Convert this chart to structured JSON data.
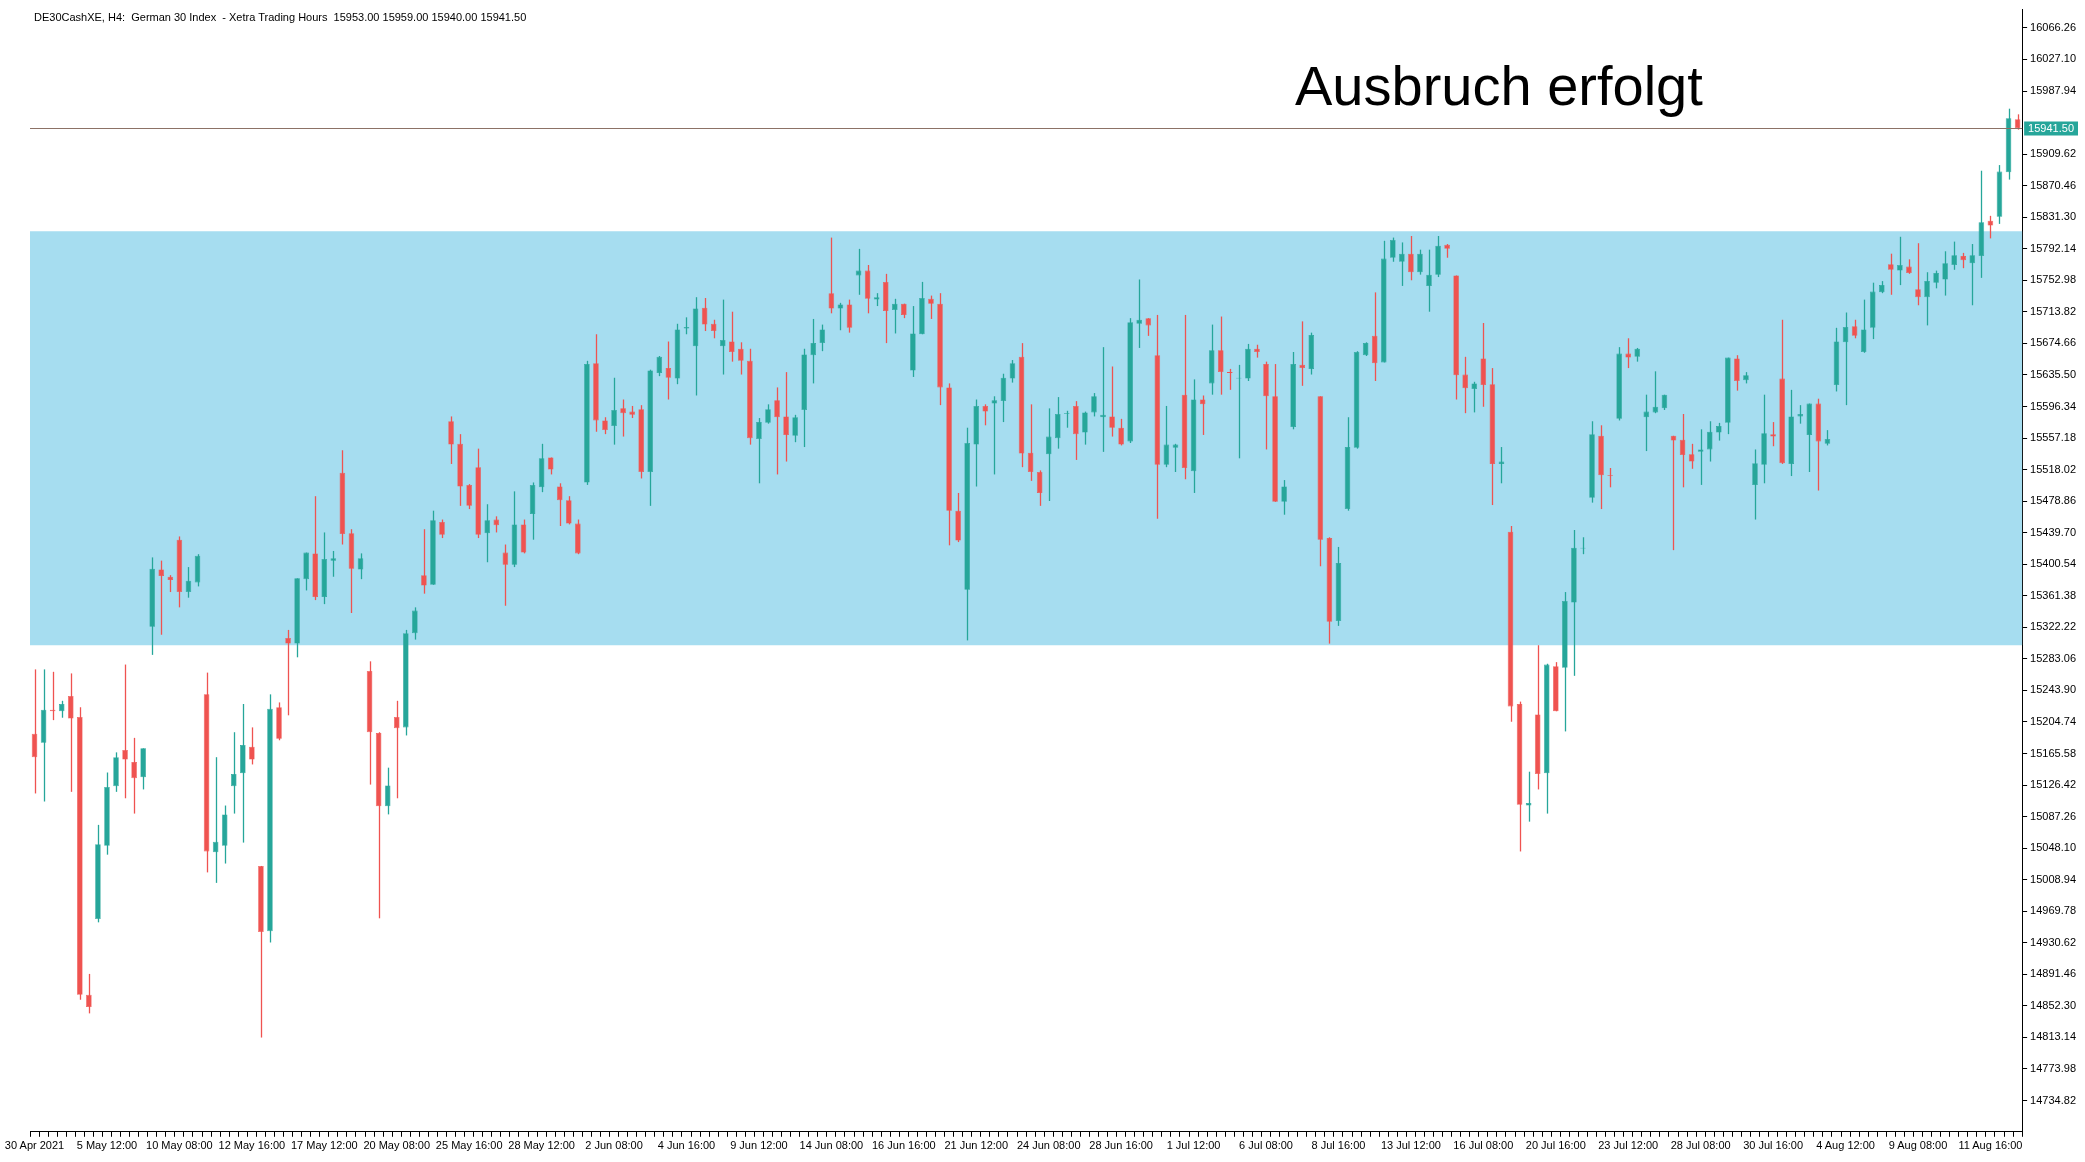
{
  "chart_data": {
    "type": "candlestick",
    "title": "DE30CashXE, H4:  German 30 Index  - Xetra Trading Hours  15953.00 15959.00 15940.00 15941.50",
    "annotations": [
      "Ausbruch erfolgt"
    ],
    "categories": [
      "30 Apr 2021",
      null,
      null,
      null,
      null,
      null,
      null,
      null,
      "5 May 12:00",
      null,
      null,
      null,
      null,
      null,
      null,
      null,
      "10 May 08:00",
      null,
      null,
      null,
      null,
      null,
      null,
      null,
      "12 May 16:00",
      null,
      null,
      null,
      null,
      null,
      null,
      null,
      "17 May 12:00",
      null,
      null,
      null,
      null,
      null,
      null,
      null,
      "20 May 08:00",
      null,
      null,
      null,
      null,
      null,
      null,
      null,
      "25 May 16:00",
      null,
      null,
      null,
      null,
      null,
      null,
      null,
      "28 May 12:00",
      null,
      null,
      null,
      null,
      null,
      null,
      null,
      "2 Jun 08:00",
      null,
      null,
      null,
      null,
      null,
      null,
      null,
      "4 Jun 16:00",
      null,
      null,
      null,
      null,
      null,
      null,
      null,
      "9 Jun 12:00",
      null,
      null,
      null,
      null,
      null,
      null,
      null,
      "14 Jun 08:00",
      null,
      null,
      null,
      null,
      null,
      null,
      null,
      "16 Jun 16:00",
      null,
      null,
      null,
      null,
      null,
      null,
      null,
      "21 Jun 12:00",
      null,
      null,
      null,
      null,
      null,
      null,
      null,
      "24 Jun 08:00",
      null,
      null,
      null,
      null,
      null,
      null,
      null,
      "28 Jun 16:00",
      null,
      null,
      null,
      null,
      null,
      null,
      null,
      "1 Jul 12:00",
      null,
      null,
      null,
      null,
      null,
      null,
      null,
      "6 Jul 08:00",
      null,
      null,
      null,
      null,
      null,
      null,
      null,
      "8 Jul 16:00",
      null,
      null,
      null,
      null,
      null,
      null,
      null,
      "13 Jul 12:00",
      null,
      null,
      null,
      null,
      null,
      null,
      null,
      "16 Jul 08:00",
      null,
      null,
      null,
      null,
      null,
      null,
      null,
      "20 Jul 16:00",
      null,
      null,
      null,
      null,
      null,
      null,
      null,
      "23 Jul 12:00",
      null,
      null,
      null,
      null,
      null,
      null,
      null,
      "28 Jul 08:00",
      null,
      null,
      null,
      null,
      null,
      null,
      null,
      "30 Jul 16:00",
      null,
      null,
      null,
      null,
      null,
      null,
      null,
      "4 Aug 12:00",
      null,
      null,
      null,
      null,
      null,
      null,
      null,
      "9 Aug 08:00",
      null,
      null,
      null,
      null,
      null,
      null,
      null,
      "11 Aug 16:00",
      null,
      null,
      null
    ],
    "ohlc": [
      [
        15190,
        15270,
        15116,
        15161
      ],
      [
        15179,
        15270,
        15106,
        15220
      ],
      [
        15220,
        15267,
        15207,
        15218
      ],
      [
        15218,
        15231,
        15210,
        15227
      ],
      [
        15237,
        15265,
        15118,
        15209
      ],
      [
        15211,
        15223,
        14860,
        14866
      ],
      [
        14866,
        14892,
        14843,
        14851
      ],
      [
        14960,
        15077,
        14956,
        15053
      ],
      [
        15051,
        15142,
        15040,
        15124
      ],
      [
        15125,
        15167,
        15118,
        15161
      ],
      [
        15170,
        15276,
        15110,
        15158
      ],
      [
        15155,
        15185,
        15091,
        15135
      ],
      [
        15136,
        15172,
        15121,
        15172
      ],
      [
        15323,
        15409,
        15288,
        15395
      ],
      [
        15394,
        15405,
        15313,
        15386
      ],
      [
        15385,
        15387,
        15366,
        15381
      ],
      [
        15431,
        15435,
        15347,
        15366
      ],
      [
        15366,
        15397,
        15359,
        15380
      ],
      [
        15378,
        15413,
        15373,
        15411
      ],
      [
        15239,
        15266,
        15018,
        15044
      ],
      [
        15043,
        15161,
        15005,
        15056
      ],
      [
        15051,
        15101,
        15029,
        15090
      ],
      [
        15125,
        15192,
        15091,
        15140
      ],
      [
        15141,
        15227,
        15055,
        15176
      ],
      [
        15174,
        15198,
        15152,
        15158
      ],
      [
        15026,
        15026,
        14813,
        14944
      ],
      [
        14945,
        15239,
        14931,
        15221
      ],
      [
        15223,
        15229,
        15182,
        15184
      ],
      [
        15309,
        15319,
        15213,
        15302
      ],
      [
        15302,
        15383,
        15285,
        15383
      ],
      [
        15382,
        15415,
        15368,
        15415
      ],
      [
        15414,
        15485,
        15356,
        15360
      ],
      [
        15360,
        15440,
        15351,
        15407
      ],
      [
        15405,
        15417,
        15385,
        15408
      ],
      [
        15514,
        15542,
        15425,
        15438
      ],
      [
        15439,
        15444,
        15340,
        15395
      ],
      [
        15394,
        15414,
        15382,
        15408
      ],
      [
        15268,
        15280,
        15127,
        15192
      ],
      [
        15191,
        15192,
        14961,
        15100
      ],
      [
        15100,
        15148,
        15090,
        15126
      ],
      [
        15211,
        15231,
        15110,
        15197
      ],
      [
        15198,
        15319,
        15188,
        15315
      ],
      [
        15315,
        15347,
        15307,
        15343
      ],
      [
        15387,
        15444,
        15364,
        15374
      ],
      [
        15375,
        15467,
        15375,
        15455
      ],
      [
        15453,
        15456,
        15433,
        15437
      ],
      [
        15578,
        15584,
        15525,
        15549
      ],
      [
        15550,
        15562,
        15473,
        15497
      ],
      [
        15499,
        15500,
        15469,
        15473
      ],
      [
        15521,
        15544,
        15433,
        15437
      ],
      [
        15439,
        15475,
        15403,
        15455
      ],
      [
        15456,
        15460,
        15440,
        15449
      ],
      [
        15415,
        15425,
        15349,
        15400
      ],
      [
        15400,
        15491,
        15397,
        15450
      ],
      [
        15450,
        15456,
        15414,
        15415
      ],
      [
        15463,
        15502,
        15431,
        15499
      ],
      [
        15496,
        15550,
        15490,
        15532
      ],
      [
        15533,
        15533,
        15512,
        15518
      ],
      [
        15497,
        15501,
        15448,
        15480
      ],
      [
        15480,
        15485,
        15450,
        15451
      ],
      [
        15451,
        15456,
        15413,
        15414
      ],
      [
        15502,
        15653,
        15499,
        15649
      ],
      [
        15650,
        15686,
        15565,
        15579
      ],
      [
        15579,
        15583,
        15562,
        15567
      ],
      [
        15572,
        15632,
        15549,
        15592
      ],
      [
        15594,
        15605,
        15559,
        15588
      ],
      [
        15590,
        15597,
        15582,
        15586
      ],
      [
        15593,
        15598,
        15507,
        15515
      ],
      [
        15515,
        15642,
        15473,
        15641
      ],
      [
        15638,
        15659,
        15634,
        15658
      ],
      [
        15644,
        15677,
        15605,
        15632
      ],
      [
        15631,
        15699,
        15624,
        15692
      ],
      [
        15693,
        15707,
        15686,
        15695
      ],
      [
        15671,
        15732,
        15610,
        15718
      ],
      [
        15719,
        15731,
        15690,
        15698
      ],
      [
        15699,
        15704,
        15681,
        15690
      ],
      [
        15671,
        15729,
        15636,
        15679
      ],
      [
        15677,
        15714,
        15652,
        15664
      ],
      [
        15668,
        15676,
        15636,
        15653
      ],
      [
        15653,
        15668,
        15549,
        15557
      ],
      [
        15556,
        15582,
        15501,
        15577
      ],
      [
        15576,
        15599,
        15575,
        15593
      ],
      [
        15604,
        15620,
        15512,
        15583
      ],
      [
        15584,
        15639,
        15528,
        15561
      ],
      [
        15560,
        15586,
        15552,
        15583
      ],
      [
        15592,
        15668,
        15546,
        15661
      ],
      [
        15660,
        15705,
        15625,
        15675
      ],
      [
        15675,
        15698,
        15665,
        15692
      ],
      [
        15737,
        15806,
        15712,
        15718
      ],
      [
        15718,
        15725,
        15691,
        15723
      ],
      [
        15723,
        15729,
        15688,
        15694
      ],
      [
        15759,
        15792,
        15735,
        15765
      ],
      [
        15765,
        15772,
        15712,
        15730
      ],
      [
        15729,
        15737,
        15721,
        15732
      ],
      [
        15751,
        15761,
        15675,
        15715
      ],
      [
        15716,
        15730,
        15687,
        15724
      ],
      [
        15724,
        15724,
        15706,
        15710
      ],
      [
        15641,
        15721,
        15633,
        15687
      ],
      [
        15686,
        15751,
        15686,
        15731
      ],
      [
        15730,
        15734,
        15705,
        15724
      ],
      [
        15724,
        15737,
        15598,
        15620
      ],
      [
        15620,
        15625,
        15424,
        15467
      ],
      [
        15467,
        15489,
        15428,
        15430
      ],
      [
        15369,
        15570,
        15306,
        15551
      ],
      [
        15549,
        15605,
        15497,
        15597
      ],
      [
        15597,
        15599,
        15573,
        15590
      ],
      [
        15600,
        15609,
        15512,
        15604
      ],
      [
        15603,
        15637,
        15577,
        15632
      ],
      [
        15631,
        15654,
        15626,
        15650
      ],
      [
        15658,
        15675,
        15521,
        15538
      ],
      [
        15539,
        15599,
        15504,
        15515
      ],
      [
        15515,
        15517,
        15473,
        15489
      ],
      [
        15537,
        15594,
        15479,
        15559
      ],
      [
        15557,
        15608,
        15544,
        15587
      ],
      [
        15587,
        15591,
        15570,
        15588
      ],
      [
        15597,
        15603,
        15530,
        15562
      ],
      [
        15564,
        15590,
        15549,
        15589
      ],
      [
        15589,
        15613,
        15584,
        15609
      ],
      [
        15583,
        15670,
        15540,
        15586
      ],
      [
        15584,
        15646,
        15559,
        15570
      ],
      [
        15570,
        15581,
        15548,
        15549
      ],
      [
        15553,
        15706,
        15551,
        15701
      ],
      [
        15699,
        15754,
        15669,
        15704
      ],
      [
        15706,
        15706,
        15684,
        15697
      ],
      [
        15660,
        15710,
        15457,
        15524
      ],
      [
        15524,
        15597,
        15521,
        15549
      ],
      [
        15545,
        15550,
        15515,
        15549
      ],
      [
        15611,
        15710,
        15506,
        15520
      ],
      [
        15516,
        15630,
        15489,
        15605
      ],
      [
        15605,
        15610,
        15561,
        15599
      ],
      [
        15625,
        15698,
        15611,
        15666
      ],
      [
        15666,
        15708,
        15611,
        15639
      ],
      [
        15639,
        15643,
        15617,
        15638
      ],
      [
        15631,
        15648,
        15532,
        15632
      ],
      [
        15631,
        15674,
        15628,
        15668
      ],
      [
        15668,
        15673,
        15657,
        15664
      ],
      [
        15649,
        15652,
        15543,
        15609
      ],
      [
        15609,
        15649,
        15478,
        15478
      ],
      [
        15478,
        15505,
        15462,
        15497
      ],
      [
        15571,
        15664,
        15568,
        15649
      ],
      [
        15648,
        15702,
        15622,
        15644
      ],
      [
        15643,
        15688,
        15636,
        15685
      ],
      [
        15609,
        15609,
        15398,
        15431
      ],
      [
        15433,
        15434,
        15302,
        15329
      ],
      [
        15330,
        15422,
        15324,
        15402
      ],
      [
        15469,
        15583,
        15467,
        15546
      ],
      [
        15545,
        15665,
        15544,
        15664
      ],
      [
        15660,
        15676,
        15659,
        15675
      ],
      [
        15684,
        15738,
        15628,
        15650
      ],
      [
        15651,
        15802,
        15651,
        15780
      ],
      [
        15781,
        15806,
        15776,
        15803
      ],
      [
        15776,
        15800,
        15746,
        15786
      ],
      [
        15786,
        15808,
        15753,
        15763
      ],
      [
        15763,
        15791,
        15760,
        15786
      ],
      [
        15746,
        15791,
        15714,
        15760
      ],
      [
        15760,
        15808,
        15757,
        15796
      ],
      [
        15797,
        15798,
        15781,
        15792
      ],
      [
        15759,
        15759,
        15605,
        15635
      ],
      [
        15636,
        15658,
        15588,
        15619
      ],
      [
        15618,
        15627,
        15589,
        15625
      ],
      [
        15656,
        15700,
        15596,
        15623
      ],
      [
        15624,
        15644,
        15474,
        15525
      ],
      [
        15525,
        15546,
        15501,
        15528
      ],
      [
        15441,
        15448,
        15205,
        15224
      ],
      [
        15227,
        15230,
        15044,
        15102
      ],
      [
        15101,
        15143,
        15081,
        15104
      ],
      [
        15214,
        15300,
        15121,
        15140
      ],
      [
        15141,
        15277,
        15091,
        15276
      ],
      [
        15274,
        15279,
        15218,
        15218
      ],
      [
        15272,
        15366,
        15193,
        15355
      ],
      [
        15353,
        15443,
        15262,
        15421
      ],
      [
        15420,
        15434,
        15413,
        15421
      ],
      [
        15483,
        15578,
        15477,
        15562
      ],
      [
        15560,
        15573,
        15469,
        15511
      ],
      [
        15511,
        15520,
        15496,
        15510
      ],
      [
        15581,
        15670,
        15579,
        15662
      ],
      [
        15662,
        15681,
        15644,
        15657
      ],
      [
        15658,
        15669,
        15652,
        15668
      ],
      [
        15583,
        15611,
        15541,
        15590
      ],
      [
        15589,
        15640,
        15588,
        15596
      ],
      [
        15594,
        15611,
        15592,
        15611
      ],
      [
        15560,
        15560,
        15418,
        15554
      ],
      [
        15555,
        15587,
        15496,
        15536
      ],
      [
        15537,
        15550,
        15519,
        15528
      ],
      [
        15540,
        15568,
        15499,
        15543
      ],
      [
        15543,
        15578,
        15528,
        15565
      ],
      [
        15564,
        15576,
        15554,
        15572
      ],
      [
        15576,
        15657,
        15562,
        15657
      ],
      [
        15656,
        15660,
        15616,
        15628
      ],
      [
        15629,
        15639,
        15625,
        15635
      ],
      [
        15499,
        15543,
        15456,
        15526
      ],
      [
        15524,
        15611,
        15501,
        15563
      ],
      [
        15562,
        15577,
        15547,
        15559
      ],
      [
        15631,
        15704,
        15525,
        15526
      ],
      [
        15525,
        15617,
        15510,
        15584
      ],
      [
        15584,
        15598,
        15575,
        15587
      ],
      [
        15561,
        15600,
        15515,
        15600
      ],
      [
        15600,
        15606,
        15492,
        15553
      ],
      [
        15550,
        15567,
        15548,
        15556
      ],
      [
        15623,
        15694,
        15615,
        15677
      ],
      [
        15676,
        15713,
        15598,
        15695
      ],
      [
        15696,
        15704,
        15681,
        15684
      ],
      [
        15664,
        15729,
        15663,
        15692
      ],
      [
        15694,
        15750,
        15680,
        15739
      ],
      [
        15738,
        15752,
        15737,
        15747
      ],
      [
        15773,
        15786,
        15735,
        15766
      ],
      [
        15765,
        15807,
        15747,
        15772
      ],
      [
        15770,
        15779,
        15761,
        15762
      ],
      [
        15742,
        15799,
        15722,
        15732
      ],
      [
        15732,
        15763,
        15697,
        15752
      ],
      [
        15750,
        15765,
        15743,
        15762
      ],
      [
        15754,
        15789,
        15734,
        15774
      ],
      [
        15772,
        15801,
        15766,
        15784
      ],
      [
        15783,
        15787,
        15768,
        15778
      ],
      [
        15774,
        15798,
        15722,
        15784
      ],
      [
        15783,
        15889,
        15756,
        15825
      ],
      [
        15827,
        15833,
        15805,
        15821
      ],
      [
        15832,
        15896,
        15823,
        15888
      ],
      [
        15887,
        15966,
        15878,
        15954
      ],
      [
        15953,
        15959,
        15940,
        15941.5
      ]
    ],
    "ylim": [
      14696,
      16089
    ],
    "yticks": [
      16066.26,
      {
        "value": 16027.1,
        "label": "16027.10"
      },
      15987.94,
      15909.62,
      15870.46,
      {
        "value": 15831.3,
        "label": "15831.30"
      },
      15792.14,
      15752.98,
      15713.82,
      15674.66,
      {
        "value": 15635.5,
        "label": "15635.50"
      },
      15596.34,
      15557.18,
      15518.02,
      15478.86,
      {
        "value": 15439.7,
        "label": "15439.70"
      },
      15400.54,
      15361.38,
      15322.22,
      15283.06,
      {
        "value": 15243.9,
        "label": "15243.90"
      },
      15204.74,
      15165.58,
      15126.42,
      15087.26,
      {
        "value": 15048.1,
        "label": "15048.10"
      },
      15008.94,
      14969.78,
      14930.62,
      14891.46,
      {
        "value": 14852.3,
        "label": "14852.30"
      },
      14813.14,
      14773.98,
      14734.82
    ],
    "ref_lines": [
      {
        "axis": "y",
        "value": 15941.5,
        "label": "15941.50",
        "color": "#8c7266"
      }
    ],
    "bands": [
      {
        "axis": "y",
        "from": 15300,
        "to": 15814,
        "color": "#a6ddf0"
      }
    ]
  }
}
